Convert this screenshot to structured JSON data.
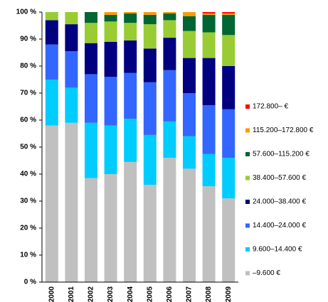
{
  "chart_data": {
    "type": "bar",
    "stacked": true,
    "categories": [
      "2000",
      "2001",
      "2002",
      "2003",
      "2004",
      "2005",
      "2006",
      "2007",
      "2008",
      "2009"
    ],
    "series": [
      {
        "name": "–9.600 €",
        "color": "#c0c0c0",
        "values": [
          58,
          59,
          38.5,
          40,
          44.5,
          36,
          46,
          42,
          35.5,
          31
        ]
      },
      {
        "name": "9.600–14.400 €",
        "color": "#00ccff",
        "values": [
          17,
          13,
          20.5,
          18,
          16,
          18.5,
          13.5,
          12,
          12,
          15
        ]
      },
      {
        "name": "14.400–24.000 €",
        "color": "#3366ff",
        "values": [
          13,
          13.5,
          18,
          18,
          17,
          19.5,
          19,
          16,
          18,
          18
        ]
      },
      {
        "name": "24.000–38.400 €",
        "color": "#000080",
        "values": [
          9,
          10,
          11.5,
          13,
          12,
          12.5,
          12,
          13,
          17.5,
          16
        ]
      },
      {
        "name": "38.400–57.600 €",
        "color": "#99cc33",
        "values": [
          3,
          4.5,
          7.5,
          7.5,
          6.5,
          9,
          6.5,
          10,
          9.5,
          11.5
        ]
      },
      {
        "name": "57.600–115.200 €",
        "color": "#006633",
        "values": [
          0,
          0,
          4,
          2.5,
          3.5,
          3.5,
          2.5,
          5.5,
          6.5,
          7.5
        ]
      },
      {
        "name": "115.200–172.800 €",
        "color": "#ff9900",
        "values": [
          0,
          0,
          0,
          1,
          0.5,
          1,
          0.5,
          1.5,
          0.5,
          0.5
        ]
      },
      {
        "name": "172.800– €",
        "color": "#ff0000",
        "values": [
          0,
          0,
          0,
          0,
          0,
          0,
          0,
          0,
          0.5,
          0.5
        ]
      }
    ],
    "ylim": [
      0,
      100
    ],
    "yticks": [
      {
        "value": 0,
        "label": "0 %"
      },
      {
        "value": 10,
        "label": "10 %"
      },
      {
        "value": 20,
        "label": "20 %"
      },
      {
        "value": 30,
        "label": "30 %"
      },
      {
        "value": 40,
        "label": "40 %"
      },
      {
        "value": 50,
        "label": "50 %"
      },
      {
        "value": 60,
        "label": "60 %"
      },
      {
        "value": 70,
        "label": "70 %"
      },
      {
        "value": 80,
        "label": "80 %"
      },
      {
        "value": 90,
        "label": "90 %"
      },
      {
        "value": 100,
        "label": "100 %"
      }
    ],
    "grid": false,
    "legend": "right"
  }
}
